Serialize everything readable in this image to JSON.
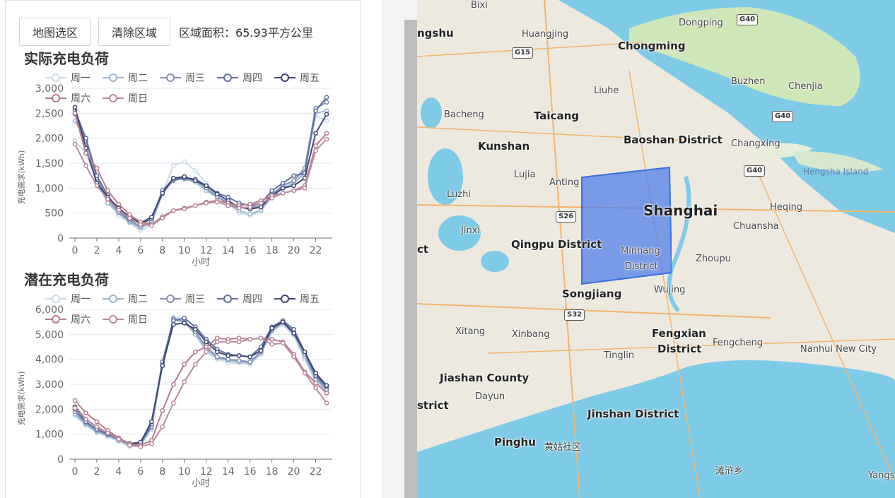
{
  "toolbar": {
    "map_select_label": "地图选区",
    "clear_area_label": "清除区域",
    "area_text": "区域面积：65.93平方公里"
  },
  "charts": [
    {
      "title": "实际充电负荷",
      "xlabel": "小时",
      "ylabel": "充电需求(kWh)",
      "ylim": [
        0,
        3000
      ],
      "yticks": [
        0,
        500,
        1000,
        1500,
        2000,
        2500,
        3000
      ],
      "ytick_labels": [
        "0",
        "500",
        "1,000",
        "1,500",
        "2,000",
        "2,500",
        "3,000"
      ],
      "xticks": [
        "0",
        "2",
        "4",
        "6",
        "8",
        "10",
        "12",
        "14",
        "16",
        "18",
        "20",
        "22"
      ],
      "legend": [
        "周一",
        "周二",
        "周三",
        "周四",
        "周五",
        "周六",
        "周日"
      ]
    },
    {
      "title": "潜在充电负荷",
      "xlabel": "小时",
      "ylabel": "充电需求(kWh)",
      "ylim": [
        0,
        6000
      ],
      "yticks": [
        0,
        1000,
        2000,
        3000,
        4000,
        5000,
        6000
      ],
      "ytick_labels": [
        "0",
        "1,000",
        "2,000",
        "3,000",
        "4,000",
        "5,000",
        "6,000"
      ],
      "xticks": [
        "0",
        "2",
        "4",
        "6",
        "8",
        "10",
        "12",
        "14",
        "16",
        "18",
        "20",
        "22"
      ],
      "legend": [
        "周一",
        "周二",
        "周三",
        "周四",
        "周五",
        "周六",
        "周日"
      ]
    }
  ],
  "chart_data": [
    {
      "type": "line",
      "title": "实际充电负荷",
      "xlabel": "小时",
      "ylabel": "充电需求(kWh)",
      "x": [
        0,
        1,
        2,
        3,
        4,
        5,
        6,
        7,
        8,
        9,
        10,
        11,
        12,
        13,
        14,
        15,
        16,
        17,
        18,
        19,
        20,
        21,
        22,
        23
      ],
      "ylim": [
        0,
        3000
      ],
      "series": [
        {
          "name": "周一",
          "color": "#c7dcea",
          "values": [
            1950,
            1700,
            1150,
            750,
            450,
            300,
            150,
            260,
            900,
            1450,
            1530,
            1350,
            1100,
            900,
            720,
            500,
            450,
            530,
            900,
            1050,
            1130,
            1350,
            2450,
            2350
          ]
        },
        {
          "name": "周二",
          "color": "#9db6cf",
          "values": [
            2350,
            1950,
            1150,
            700,
            500,
            320,
            200,
            320,
            880,
            1180,
            1180,
            1120,
            950,
            820,
            700,
            550,
            480,
            560,
            820,
            1000,
            1100,
            1300,
            2500,
            2550
          ]
        },
        {
          "name": "周三",
          "color": "#7f93b6",
          "values": [
            2480,
            1950,
            1200,
            780,
            520,
            350,
            230,
            330,
            920,
            1150,
            1200,
            1150,
            1000,
            830,
            700,
            620,
            600,
            650,
            870,
            1050,
            1150,
            1400,
            2600,
            2720
          ]
        },
        {
          "name": "周四",
          "color": "#5f6fa0",
          "values": [
            2560,
            2000,
            1250,
            850,
            560,
            380,
            280,
            380,
            950,
            1180,
            1200,
            1180,
            1050,
            900,
            820,
            700,
            650,
            700,
            950,
            1100,
            1250,
            1300,
            2550,
            2820
          ]
        },
        {
          "name": "周五",
          "color": "#3d466f",
          "values": [
            2620,
            1800,
            1100,
            820,
            600,
            420,
            300,
            420,
            900,
            1200,
            1230,
            1150,
            1050,
            880,
            750,
            620,
            580,
            620,
            850,
            1000,
            1050,
            1200,
            2100,
            2480
          ]
        },
        {
          "name": "周六",
          "color": "#b87d8c",
          "values": [
            2500,
            1700,
            1400,
            950,
            680,
            470,
            320,
            270,
            430,
            550,
            600,
            650,
            720,
            750,
            700,
            650,
            680,
            750,
            850,
            900,
            950,
            1050,
            1850,
            2100
          ]
        },
        {
          "name": "周日",
          "color": "#b98aa3",
          "values": [
            1880,
            1450,
            1050,
            780,
            560,
            400,
            270,
            250,
            400,
            550,
            580,
            650,
            700,
            720,
            650,
            600,
            620,
            700,
            800,
            900,
            950,
            1000,
            1750,
            1980
          ]
        }
      ]
    },
    {
      "type": "line",
      "title": "潜在充电负荷",
      "xlabel": "小时",
      "ylabel": "充电需求(kWh)",
      "x": [
        0,
        1,
        2,
        3,
        4,
        5,
        6,
        7,
        8,
        9,
        10,
        11,
        12,
        13,
        14,
        15,
        16,
        17,
        18,
        19,
        20,
        21,
        22,
        23
      ],
      "ylim": [
        0,
        6000
      ],
      "series": [
        {
          "name": "周一",
          "color": "#c7dcea",
          "values": [
            1750,
            1350,
            1050,
            900,
            700,
            500,
            550,
            1200,
            3700,
            5700,
            5600,
            5000,
            4300,
            4000,
            3850,
            3850,
            3800,
            4200,
            5100,
            5400,
            4950,
            4000,
            3100,
            2700
          ]
        },
        {
          "name": "周二",
          "color": "#9db6cf",
          "values": [
            1800,
            1400,
            1100,
            950,
            750,
            550,
            600,
            1250,
            3800,
            5650,
            5500,
            5000,
            4400,
            4050,
            3950,
            3900,
            3850,
            4250,
            5150,
            5450,
            5000,
            4100,
            3200,
            2750
          ]
        },
        {
          "name": "周三",
          "color": "#7f93b6",
          "values": [
            1900,
            1450,
            1150,
            980,
            780,
            580,
            620,
            1300,
            3850,
            5600,
            5500,
            5100,
            4500,
            4100,
            4000,
            3950,
            3900,
            4300,
            5200,
            5500,
            5100,
            4200,
            3300,
            2800
          ]
        },
        {
          "name": "周四",
          "color": "#5f6fa0",
          "values": [
            2000,
            1500,
            1200,
            1000,
            800,
            600,
            650,
            1400,
            3900,
            5550,
            5650,
            5300,
            4800,
            4400,
            4200,
            4150,
            4100,
            4500,
            5300,
            5550,
            5200,
            4300,
            3350,
            2900
          ]
        },
        {
          "name": "周五",
          "color": "#3d466f",
          "values": [
            2100,
            1600,
            1300,
            1050,
            850,
            620,
            680,
            1500,
            3750,
            5400,
            5450,
            5200,
            4700,
            4300,
            4150,
            4150,
            4100,
            4350,
            5250,
            5500,
            5050,
            4300,
            3450,
            2950
          ]
        },
        {
          "name": "周六",
          "color": "#b87d8c",
          "values": [
            2350,
            1850,
            1500,
            1150,
            850,
            600,
            560,
            750,
            1950,
            3000,
            3800,
            4300,
            4500,
            4850,
            4800,
            4850,
            4800,
            4850,
            4800,
            4700,
            4200,
            3500,
            3050,
            2650
          ]
        },
        {
          "name": "周日",
          "color": "#b98aa3",
          "values": [
            2050,
            1600,
            1300,
            1050,
            800,
            550,
            500,
            620,
            1300,
            2250,
            3100,
            3800,
            4300,
            4700,
            4700,
            4700,
            4800,
            4850,
            4600,
            4650,
            4100,
            3450,
            2850,
            2250
          ]
        }
      ]
    }
  ],
  "map": {
    "labels": [
      {
        "text": "Dongping",
        "size": "sm"
      },
      {
        "text": "Chongming",
        "size": "md"
      },
      {
        "text": "Huangjing",
        "size": "sm"
      },
      {
        "text": "ngshu",
        "size": "md"
      },
      {
        "text": "Buzhen",
        "size": "sm"
      },
      {
        "text": "Chenjia",
        "size": "sm"
      },
      {
        "text": "Liuhe",
        "size": "sm"
      },
      {
        "text": "Bacheng",
        "size": "sm"
      },
      {
        "text": "Taicang",
        "size": "md"
      },
      {
        "text": "Baoshan District",
        "size": "md"
      },
      {
        "text": "Changxing",
        "size": "sm"
      },
      {
        "text": "Kunshan",
        "size": "md"
      },
      {
        "text": "Lujia",
        "size": "sm"
      },
      {
        "text": "Anting",
        "size": "sm"
      },
      {
        "text": "Hengsha Island",
        "size": "island"
      },
      {
        "text": "Luzhi",
        "size": "sm"
      },
      {
        "text": "Shanghai",
        "size": "lg"
      },
      {
        "text": "Heqing",
        "size": "sm"
      },
      {
        "text": "Chuansha",
        "size": "sm"
      },
      {
        "text": "Jinxi",
        "size": "sm"
      },
      {
        "text": "Qingpu District",
        "size": "md"
      },
      {
        "text": "Minhang",
        "size": "sm"
      },
      {
        "text": "District",
        "size": "sm"
      },
      {
        "text": "Zhoupu",
        "size": "sm"
      },
      {
        "text": "Songjiang",
        "size": "md"
      },
      {
        "text": "Wujing",
        "size": "sm"
      },
      {
        "text": "Fengxian",
        "size": "md"
      },
      {
        "text": "District",
        "size": "md"
      },
      {
        "text": "Xitang",
        "size": "sm"
      },
      {
        "text": "Xinbang",
        "size": "sm"
      },
      {
        "text": "Fengcheng",
        "size": "sm"
      },
      {
        "text": "Nanhui New City",
        "size": "sm"
      },
      {
        "text": "Tinglin",
        "size": "sm"
      },
      {
        "text": "Jiashan County",
        "size": "md"
      },
      {
        "text": "strict",
        "size": "md"
      },
      {
        "text": "Dayun",
        "size": "sm"
      },
      {
        "text": "Jinshan District",
        "size": "md"
      },
      {
        "text": "Pinghu",
        "size": "md"
      },
      {
        "text": "黄姑社区",
        "size": "sm"
      },
      {
        "text": "滩浒乡",
        "size": "sm"
      },
      {
        "text": "Yangs",
        "size": "sm"
      },
      {
        "text": "ct",
        "size": "md"
      },
      {
        "text": "Bixi",
        "size": "sm"
      }
    ],
    "shields": [
      "G40",
      "G15",
      "G40",
      "G40",
      "S26",
      "S32"
    ],
    "colors": {
      "water": "#7ecbe8",
      "land": "#ede9df",
      "island": "#cfe6b8",
      "selection": "#4f7ee8"
    }
  }
}
